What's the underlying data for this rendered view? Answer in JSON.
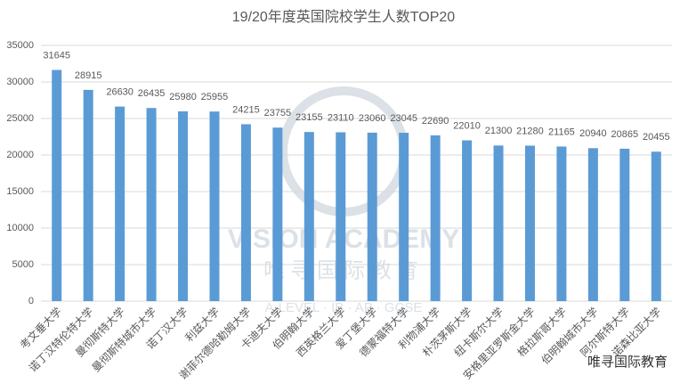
{
  "chart_data": {
    "type": "bar",
    "title": "19/20年度英国院校学生人数TOP20",
    "categories": [
      "考文垂大学",
      "诺丁汉特伦特大学",
      "曼彻斯特大学",
      "曼彻斯特城市大学",
      "诺丁汉大学",
      "利兹大学",
      "谢菲尔德哈勒姆大学",
      "卡迪夫大学",
      "伯明翰大学",
      "西英格兰大学",
      "爱丁堡大学",
      "德蒙福特大学",
      "利物浦大学",
      "朴茨茅斯大学",
      "纽卡斯尔大学",
      "安格里亚罗斯金大学",
      "格拉斯哥大学",
      "伯明翰城市大学",
      "阿尔斯特大学",
      "诺森比亚大学"
    ],
    "values": [
      31645,
      28915,
      26630,
      26435,
      25980,
      25955,
      24215,
      23755,
      23155,
      23110,
      23060,
      23045,
      22690,
      22010,
      21300,
      21280,
      21165,
      20940,
      20865,
      20455
    ],
    "color": "#5b9bd5",
    "ylim": [
      0,
      35000
    ],
    "yticks": [
      0,
      5000,
      10000,
      15000,
      20000,
      25000,
      30000,
      35000
    ],
    "grid": true,
    "watermark": {
      "name": "VISION ACADEMY",
      "name_cn": "唯寻国际教育",
      "tagline": "A·LEVEL · IB · AP · GCSE",
      "badge": "唯寻国际教育"
    }
  }
}
